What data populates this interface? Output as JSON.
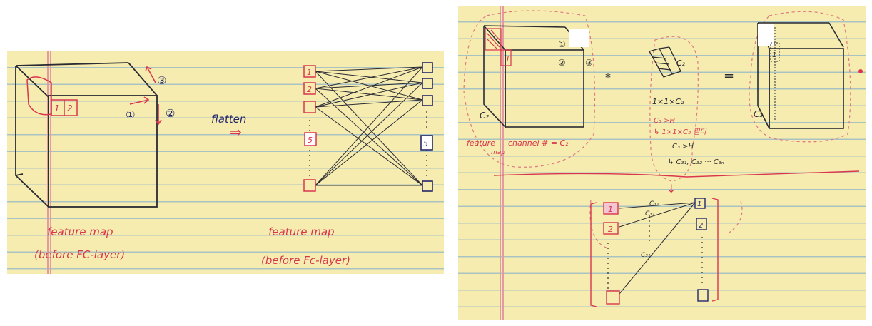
{
  "left_sketch": {
    "face_labels": {
      "one": "1",
      "two": "2"
    },
    "axis_labels": {
      "one": "①",
      "two": "②",
      "three": "③"
    },
    "flatten_label": "flatten",
    "flatten_arrow": "⇒",
    "caption_left": {
      "line1": "feature map",
      "line2": "(before FC-layer)"
    },
    "caption_right": {
      "line1": "feature map",
      "line2": "(before Fc-layer)"
    },
    "input_nodes": [
      "1",
      "2",
      "",
      "5",
      ""
    ],
    "output_nodes": [
      "",
      "",
      "",
      "5",
      ""
    ]
  },
  "right_sketch": {
    "left_cube": {
      "face_label": "1",
      "axis_labels": {
        "one": "①",
        "two": "②",
        "three": "③"
      },
      "depth_label": "C₂",
      "caption_main": "feature",
      "caption_sub": "map",
      "caption_channel": "channel # = C₂"
    },
    "operator_multiply": "*",
    "kernel": {
      "label": "C₂",
      "size": "1×1×C₂",
      "note1": "C₃ >H",
      "note2": "↳ 1×1×C₂ 필터",
      "note3": "C₃ >H",
      "note4": "↳ C₃₁, C₃₂ ··· C₃ₙ"
    },
    "operator_equals": "=",
    "right_cube": {
      "face_label": "1",
      "depth_label": "C₃"
    },
    "arrow_down": "↓",
    "nodes_left": [
      "1",
      "2",
      ""
    ],
    "nodes_right": [
      "1",
      "2",
      ""
    ],
    "edge_labels": [
      "C₃₁",
      "C₃₁",
      "C₃₁"
    ]
  }
}
